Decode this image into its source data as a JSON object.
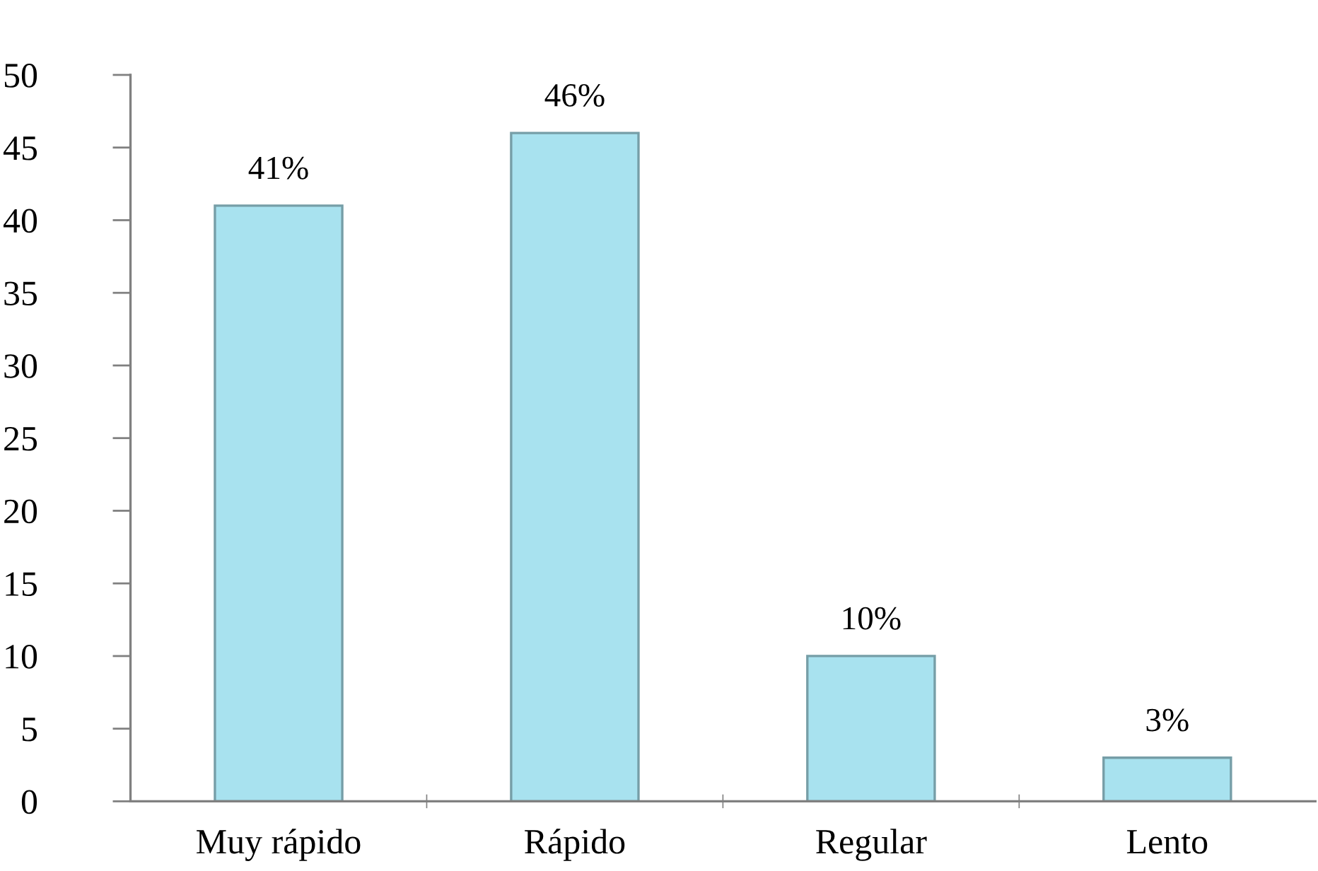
{
  "chart_data": {
    "type": "bar",
    "categories": [
      "Muy rápido",
      "Rápido",
      "Regular",
      "Lento"
    ],
    "values": [
      41,
      46,
      10,
      3
    ],
    "value_labels": [
      "41%",
      "46%",
      "10%",
      "3%"
    ],
    "color": "#a8e2ef",
    "ylim": [
      0,
      50
    ],
    "yticks": [
      0,
      5,
      10,
      15,
      20,
      25,
      30,
      35,
      40,
      45,
      50
    ]
  }
}
